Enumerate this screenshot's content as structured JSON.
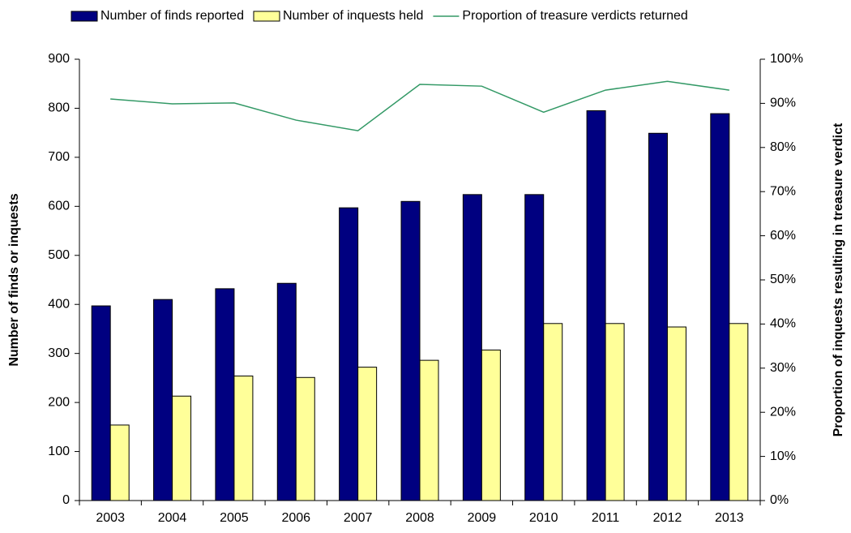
{
  "chart_data": {
    "type": "bar",
    "categories": [
      "2003",
      "2004",
      "2005",
      "2006",
      "2007",
      "2008",
      "2009",
      "2010",
      "2011",
      "2012",
      "2013"
    ],
    "series": [
      {
        "name": "Number of finds reported",
        "color": "#000080",
        "values": [
          397,
          410,
          432,
          443,
          597,
          610,
          624,
          624,
          795,
          749,
          789
        ]
      },
      {
        "name": "Number of inquests held",
        "color": "#ffff99",
        "values": [
          154,
          213,
          254,
          251,
          272,
          286,
          307,
          361,
          361,
          354,
          361
        ]
      },
      {
        "name": "Proportion of treasure verdicts returned",
        "color": "#339966",
        "type": "line",
        "axis": "y2",
        "values": [
          91,
          89.9,
          90.1,
          86.2,
          83.8,
          94.3,
          93.9,
          88,
          93,
          95,
          93
        ]
      }
    ],
    "y_label": "Number of finds or inquests",
    "y2_label": "Proportion of inquests resulting in treasure verdict",
    "ylim": [
      0,
      900
    ],
    "yticks": [
      0,
      100,
      200,
      300,
      400,
      500,
      600,
      700,
      800,
      900
    ],
    "y2lim": [
      0,
      100
    ],
    "y2ticks": [
      {
        "value": 0,
        "label": "0%"
      },
      {
        "value": 10,
        "label": "10%"
      },
      {
        "value": 20,
        "label": "20%"
      },
      {
        "value": 30,
        "label": "30%"
      },
      {
        "value": 40,
        "label": "40%"
      },
      {
        "value": 50,
        "label": "50%"
      },
      {
        "value": 60,
        "label": "60%"
      },
      {
        "value": 70,
        "label": "70%"
      },
      {
        "value": 80,
        "label": "80%"
      },
      {
        "value": 90,
        "label": "90%"
      },
      {
        "value": 100,
        "label": "100%"
      }
    ],
    "legend": "top"
  }
}
